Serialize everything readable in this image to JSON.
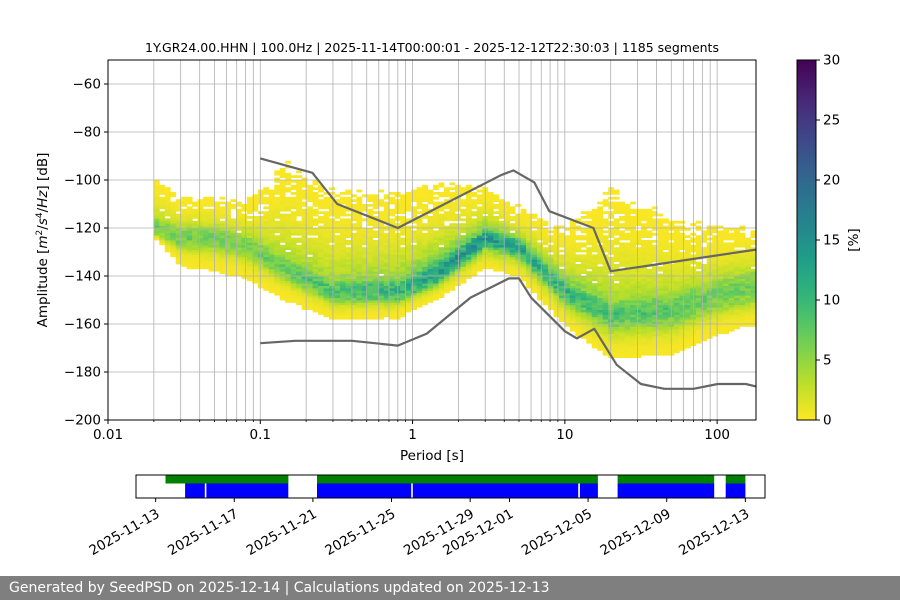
{
  "chart_data": [
    {
      "type": "heatmap",
      "title": "1Y.GR24.00.HHN | 100.0Hz | 2025-11-14T00:00:01 - 2025-12-12T22:30:03 | 1185 segments",
      "xlabel": "Period [s]",
      "ylabel_parts": [
        "Amplitude [",
        "m",
        "2",
        "/",
        "s",
        "4",
        "/",
        "Hz",
        "] [dB]"
      ],
      "xscale": "log",
      "xlim": [
        0.01,
        180
      ],
      "ylim": [
        -200,
        -50
      ],
      "grid": true,
      "x_ticks": [
        0.01,
        0.1,
        1,
        10,
        100
      ],
      "x_tick_labels": [
        "0.01",
        "0.1",
        "1",
        "10",
        "100"
      ],
      "y_ticks": [
        -200,
        -180,
        -160,
        -140,
        -120,
        -100,
        -80,
        -60
      ],
      "y_tick_labels": [
        "−200",
        "−180",
        "−160",
        "−140",
        "−120",
        "−100",
        "−80",
        "−60"
      ],
      "colorbar": {
        "label": "[%]",
        "range": [
          0,
          30
        ],
        "ticks": [
          0,
          5,
          10,
          15,
          20,
          25,
          30
        ],
        "tick_labels": [
          "0",
          "5",
          "10",
          "15",
          "20",
          "25",
          "30"
        ],
        "colormap": "viridis_r"
      },
      "density_bands": [
        {
          "period": 0.02,
          "mode": -119,
          "core_halfwidth": 3,
          "lower_halfwidth": 4,
          "upper_halfwidth": 25,
          "peak_percent": 7
        },
        {
          "period": 0.03,
          "mode": -124,
          "core_halfwidth": 4,
          "lower_halfwidth": 10,
          "upper_halfwidth": 20,
          "peak_percent": 7
        },
        {
          "period": 0.05,
          "mode": -124,
          "core_halfwidth": 4,
          "lower_halfwidth": 12,
          "upper_halfwidth": 20,
          "peak_percent": 7
        },
        {
          "period": 0.08,
          "mode": -127,
          "core_halfwidth": 4,
          "lower_halfwidth": 12,
          "upper_halfwidth": 22,
          "peak_percent": 7
        },
        {
          "period": 0.15,
          "mode": -137,
          "core_halfwidth": 4,
          "lower_halfwidth": 11,
          "upper_halfwidth": 52,
          "peak_percent": 8
        },
        {
          "period": 0.3,
          "mode": -146,
          "core_halfwidth": 4,
          "lower_halfwidth": 10,
          "upper_halfwidth": 48,
          "peak_percent": 9
        },
        {
          "period": 0.8,
          "mode": -146,
          "core_halfwidth": 4,
          "lower_halfwidth": 9,
          "upper_halfwidth": 45,
          "peak_percent": 11
        },
        {
          "period": 1.5,
          "mode": -138,
          "core_halfwidth": 4,
          "lower_halfwidth": 9,
          "upper_halfwidth": 38,
          "peak_percent": 14
        },
        {
          "period": 3.0,
          "mode": -124,
          "core_halfwidth": 3,
          "lower_halfwidth": 10,
          "upper_halfwidth": 22,
          "peak_percent": 15
        },
        {
          "period": 5.0,
          "mode": -128,
          "core_halfwidth": 3,
          "lower_halfwidth": 10,
          "upper_halfwidth": 18,
          "peak_percent": 13
        },
        {
          "period": 10,
          "mode": -146,
          "core_halfwidth": 4,
          "lower_halfwidth": 12,
          "upper_halfwidth": 28,
          "peak_percent": 11
        },
        {
          "period": 20,
          "mode": -156,
          "core_halfwidth": 5,
          "lower_halfwidth": 16,
          "upper_halfwidth": 60,
          "peak_percent": 9
        },
        {
          "period": 50,
          "mode": -154,
          "core_halfwidth": 6,
          "lower_halfwidth": 16,
          "upper_halfwidth": 45,
          "peak_percent": 8
        },
        {
          "period": 100,
          "mode": -148,
          "core_halfwidth": 6,
          "lower_halfwidth": 14,
          "upper_halfwidth": 35,
          "peak_percent": 7
        },
        {
          "period": 180,
          "mode": -144,
          "core_halfwidth": 6,
          "lower_halfwidth": 14,
          "upper_halfwidth": 30,
          "peak_percent": 7
        }
      ],
      "series": [
        {
          "role": "high noise model",
          "color": "#666666",
          "x": [
            0.1,
            0.22,
            0.32,
            0.8,
            3.8,
            4.6,
            6.3,
            7.9,
            15.4,
            20,
            180
          ],
          "y": [
            -91,
            -97,
            -110,
            -120,
            -98,
            -96,
            -101,
            -113,
            -120,
            -138,
            -129
          ]
        },
        {
          "role": "low noise model",
          "color": "#666666",
          "x": [
            0.1,
            0.17,
            0.4,
            0.8,
            1.24,
            2.4,
            4.3,
            5.0,
            6.0,
            10,
            12,
            15.6,
            21.9,
            31.6,
            45,
            70,
            101,
            154,
            180
          ],
          "y": [
            -168,
            -167,
            -167,
            -169,
            -164,
            -149,
            -141,
            -141,
            -149,
            -163,
            -166,
            -162,
            -177,
            -185,
            -187,
            -187,
            -185,
            -185,
            -186
          ]
        }
      ]
    },
    {
      "type": "timeline",
      "x_tick_labels": [
        "2025-11-13",
        "2025-11-17",
        "2025-11-21",
        "2025-11-25",
        "2025-11-29",
        "2025-12-01",
        "2025-12-05",
        "2025-12-09",
        "2025-12-13"
      ],
      "x_ticks": [
        "2025-11-13",
        "2025-11-17",
        "2025-11-21",
        "2025-11-25",
        "2025-11-29",
        "2025-12-01",
        "2025-12-05",
        "2025-12-09",
        "2025-12-13"
      ],
      "xlim": [
        "2025-11-12T00:00",
        "2025-12-14T00:00"
      ],
      "rows": [
        {
          "role": "data availability",
          "color": "#008000",
          "intervals": [
            [
              "2025-11-13T12:00",
              "2025-11-19T18:00"
            ],
            [
              "2025-11-21T05:00",
              "2025-12-05T12:00"
            ],
            [
              "2025-12-06T12:00",
              "2025-12-11T10:00"
            ],
            [
              "2025-12-12T00:00",
              "2025-12-13T00:00"
            ]
          ]
        },
        {
          "role": "processed segments",
          "color": "#0000ff",
          "intervals": [
            [
              "2025-11-14T12:00",
              "2025-11-15T12:00"
            ],
            [
              "2025-11-15T14:00",
              "2025-11-19T18:00"
            ],
            [
              "2025-11-21T05:00",
              "2025-11-26T00:00"
            ],
            [
              "2025-11-26T02:00",
              "2025-12-04T12:00"
            ],
            [
              "2025-12-04T14:00",
              "2025-12-05T12:00"
            ],
            [
              "2025-12-06T12:00",
              "2025-12-11T10:00"
            ],
            [
              "2025-12-12T00:00",
              "2025-12-13T00:00"
            ]
          ]
        }
      ]
    }
  ],
  "footer": {
    "text": "Generated by SeedPSD on 2025-12-14 | Calculations updated on 2025-12-13"
  }
}
